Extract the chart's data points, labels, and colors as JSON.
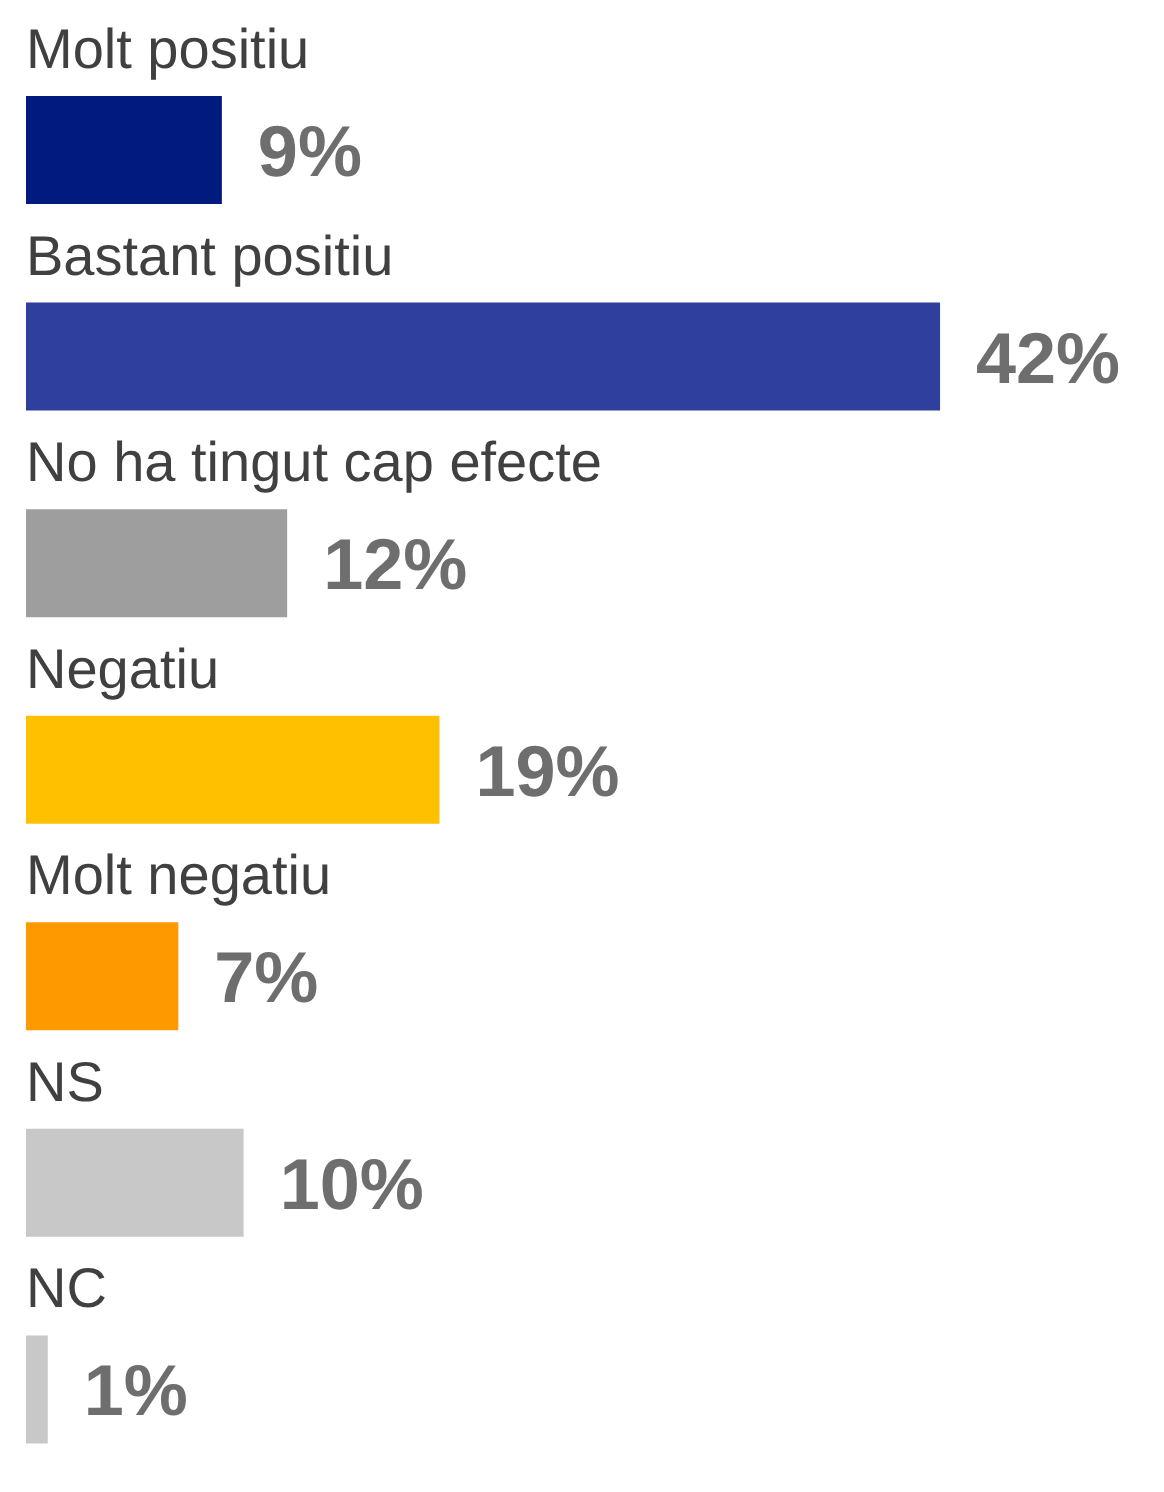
{
  "chart_data": {
    "type": "bar",
    "orientation": "horizontal",
    "categories": [
      "Molt positiu",
      "Bastant positiu",
      "No ha tingut cap efecte",
      "Negatiu",
      "Molt negatiu",
      "NS",
      "NC"
    ],
    "values": [
      9,
      42,
      12,
      19,
      7,
      10,
      1
    ],
    "colors": [
      "#001a80",
      "#2e3f9e",
      "#9e9e9e",
      "#ffc000",
      "#ff9900",
      "#c8c8c8",
      "#c8c8c8"
    ],
    "value_labels": [
      "9%",
      "42%",
      "12%",
      "19%",
      "7%",
      "10%",
      "1%"
    ]
  }
}
